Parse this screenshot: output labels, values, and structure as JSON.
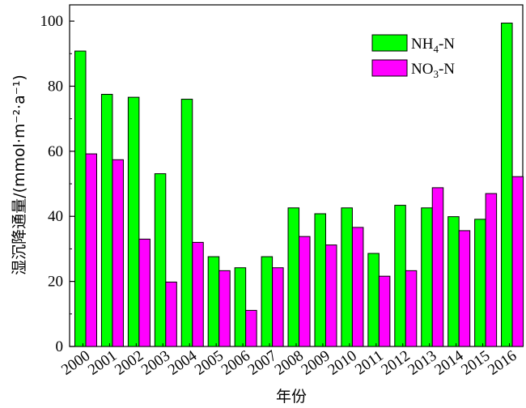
{
  "chart_data": {
    "type": "bar",
    "categories": [
      "2000",
      "2001",
      "2002",
      "2003",
      "2004",
      "2005",
      "2006",
      "2007",
      "2008",
      "2009",
      "2010",
      "2011",
      "2012",
      "2013",
      "2014",
      "2015",
      "2016"
    ],
    "series": [
      {
        "name": "NH4-N",
        "name_main": "NH",
        "name_sub": "4",
        "name_tail": "-N",
        "color": "#00ff00",
        "values": [
          90.8,
          77.5,
          76.6,
          53.1,
          76.0,
          27.6,
          24.2,
          27.6,
          42.6,
          40.8,
          42.6,
          28.6,
          43.4,
          42.6,
          39.9,
          39.1,
          99.4
        ]
      },
      {
        "name": "NO3-N",
        "name_main": "NO",
        "name_sub": "3",
        "name_tail": "-N",
        "color": "#ff00ff",
        "values": [
          59.2,
          57.4,
          33.0,
          19.8,
          32.0,
          23.3,
          11.1,
          24.2,
          33.8,
          31.2,
          36.6,
          21.6,
          23.3,
          48.8,
          35.6,
          47.0,
          52.2
        ]
      }
    ],
    "xlabel": "年份",
    "ylabel": "湿沉降通量/(mmol·m⁻²·a⁻¹)",
    "ylim": [
      0,
      105
    ],
    "yticks": [
      0,
      20,
      40,
      60,
      80,
      100
    ],
    "legend_position": "top-right",
    "grid": false
  }
}
